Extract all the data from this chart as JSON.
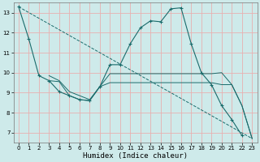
{
  "xlabel": "Humidex (Indice chaleur)",
  "bg_color": "#ceeaea",
  "grid_color": "#e8b0b0",
  "line_color": "#1a6b6b",
  "xlim": [
    -0.5,
    23.5
  ],
  "ylim": [
    6.5,
    13.5
  ],
  "yticks": [
    7,
    8,
    9,
    10,
    11,
    12,
    13
  ],
  "xticks": [
    0,
    1,
    2,
    3,
    4,
    5,
    6,
    7,
    8,
    9,
    10,
    11,
    12,
    13,
    14,
    15,
    16,
    17,
    18,
    19,
    20,
    21,
    22,
    23
  ],
  "series_dashed": {
    "x": [
      0,
      23
    ],
    "y": [
      13.3,
      6.7
    ]
  },
  "series_main": {
    "x": [
      0,
      1,
      2,
      3,
      4,
      5,
      6,
      7,
      8,
      9,
      10,
      11,
      12,
      13,
      14,
      15,
      16,
      17,
      18,
      19,
      20,
      21,
      22
    ],
    "y": [
      13.3,
      11.7,
      9.85,
      9.6,
      9.05,
      8.85,
      8.65,
      8.6,
      9.3,
      10.4,
      10.4,
      11.45,
      12.25,
      12.6,
      12.55,
      13.2,
      13.25,
      11.45,
      10.0,
      9.4,
      8.35,
      7.65,
      6.85
    ]
  },
  "series_upper": {
    "x": [
      3,
      4,
      5,
      6,
      7,
      8,
      9,
      10,
      11,
      12,
      13,
      14,
      15,
      16,
      17,
      18,
      19,
      20,
      21,
      22,
      23
    ],
    "y": [
      9.85,
      9.6,
      9.05,
      8.85,
      8.65,
      9.3,
      9.95,
      9.95,
      9.95,
      9.95,
      9.95,
      9.95,
      9.95,
      9.95,
      9.95,
      9.95,
      9.95,
      10.0,
      9.4,
      8.35,
      6.7
    ]
  },
  "series_lower": {
    "x": [
      3,
      4,
      5,
      6,
      7,
      8,
      9,
      10,
      11,
      12,
      13,
      14,
      15,
      16,
      17,
      18,
      19,
      20,
      21,
      22,
      23
    ],
    "y": [
      9.6,
      9.55,
      8.85,
      8.65,
      8.6,
      9.3,
      9.5,
      9.5,
      9.5,
      9.5,
      9.5,
      9.5,
      9.5,
      9.5,
      9.5,
      9.5,
      9.5,
      9.4,
      9.4,
      8.35,
      6.7
    ]
  }
}
